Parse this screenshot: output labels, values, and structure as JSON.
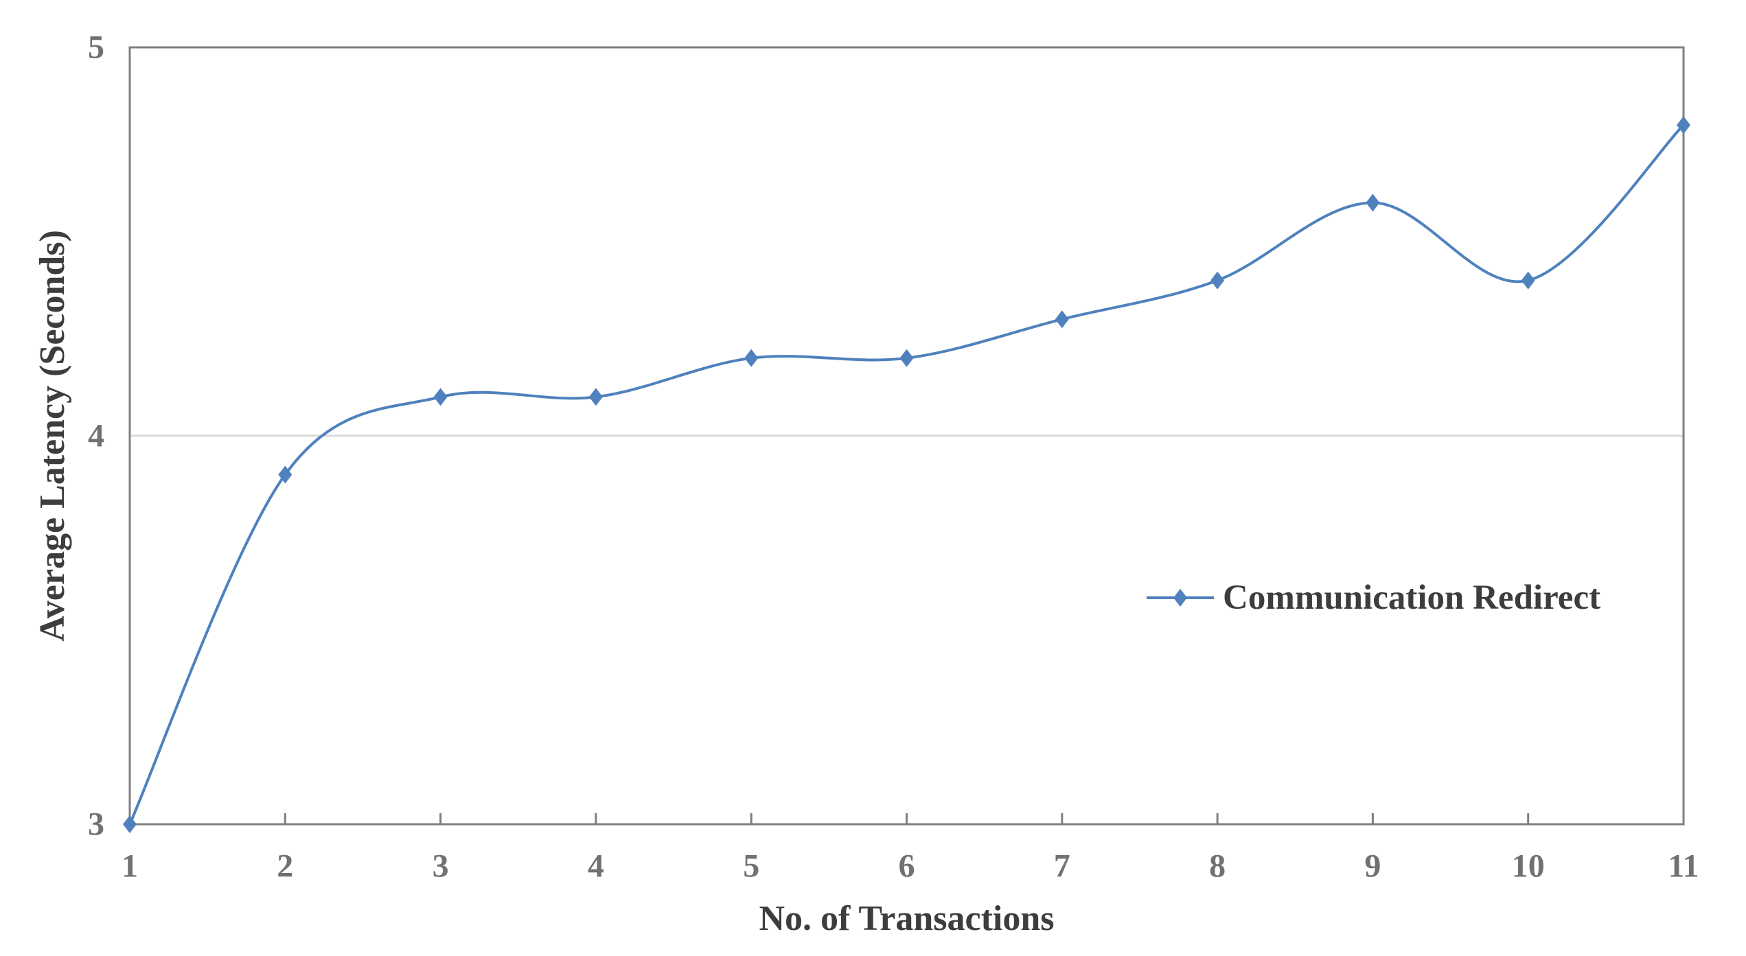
{
  "chart_data": {
    "type": "line",
    "title": "",
    "categories": [
      1,
      2,
      3,
      4,
      5,
      6,
      7,
      8,
      9,
      10,
      11
    ],
    "series": [
      {
        "name": "Communication Redirect",
        "values": [
          3.0,
          3.9,
          4.1,
          4.1,
          4.2,
          4.2,
          4.3,
          4.4,
          4.6,
          4.4,
          4.8
        ]
      }
    ],
    "xlabel": "No. of Transactions",
    "ylabel": "Average Latency (Seconds)",
    "ylim": [
      3,
      5
    ],
    "yticks": [
      5,
      4,
      3
    ],
    "xticks": [
      1,
      2,
      3,
      4,
      5,
      6,
      7,
      8,
      9,
      10,
      11
    ],
    "smoothed": true,
    "marker": "diamond",
    "grid": "horizontal-major-interior-only",
    "legend_position": "inside-middle-right",
    "colors": {
      "series": "#4F81BD",
      "axis": "#7F7F7F",
      "gridline": "#D9D9D9",
      "tick_label": "#717171",
      "title_text": "#3D3D3D"
    }
  }
}
